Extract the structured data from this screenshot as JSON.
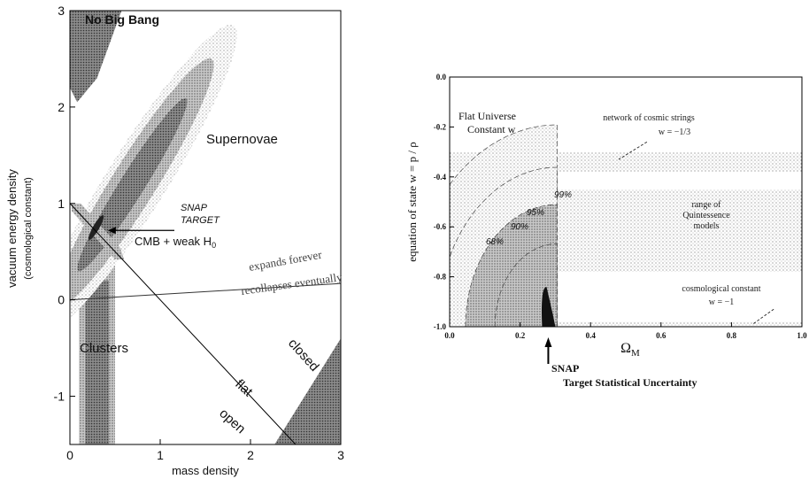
{
  "chart_data": [
    {
      "type": "area",
      "xlabel": "mass density",
      "ylabel": "vacuum energy density",
      "ylabel2": "(cosmological constant)",
      "xlim": [
        0,
        3
      ],
      "ylim": [
        -1.5,
        3
      ],
      "xticks": [
        {
          "value": 0,
          "label": "0"
        },
        {
          "value": 1,
          "label": "1"
        },
        {
          "value": 2,
          "label": "2"
        },
        {
          "value": 3,
          "label": "3"
        }
      ],
      "yticks": [
        {
          "value": -1,
          "label": "-1"
        },
        {
          "value": 0,
          "label": "0"
        },
        {
          "value": 1,
          "label": "1"
        },
        {
          "value": 2,
          "label": "2"
        },
        {
          "value": 3,
          "label": "3"
        }
      ],
      "regions": {
        "no_big_bang": "No Big Bang",
        "supernovae": "Supernovae",
        "snap_target_1": "SNAP",
        "snap_target_2": "TARGET",
        "cmb": "CMB + weak H",
        "cmb_sub": "0",
        "clusters": "Clusters",
        "expands": "expands forever",
        "recollapses": "recollapses eventually",
        "closed": "closed",
        "flat": "flat",
        "open": "open"
      },
      "supernovae_ellipse_center": [
        0.75,
        1.25
      ],
      "clusters_band_x": [
        0.1,
        0.5
      ],
      "flat_line": {
        "x": [
          0,
          2.5
        ],
        "y": [
          1,
          -1.5
        ]
      },
      "recollapse_line": {
        "x": [
          0,
          3
        ],
        "y": [
          0,
          0.17
        ]
      }
    },
    {
      "type": "area",
      "title": "Flat Universe",
      "subtitle": "Constant w",
      "xlabel_main": "Ω",
      "xlabel_sub": "M",
      "ylabel": "equation of state    w = p / ρ",
      "xlim": [
        0,
        1
      ],
      "ylim": [
        -1,
        0
      ],
      "xticks": [
        {
          "value": 0,
          "label": "0.0"
        },
        {
          "value": 0.2,
          "label": "0.2"
        },
        {
          "value": 0.4,
          "label": "0.4"
        },
        {
          "value": 0.6,
          "label": "0.6"
        },
        {
          "value": 0.8,
          "label": "0.8"
        },
        {
          "value": 1.0,
          "label": "1.0"
        }
      ],
      "yticks": [
        {
          "value": 0,
          "label": "0.0"
        },
        {
          "value": -0.2,
          "label": "-0.2"
        },
        {
          "value": -0.4,
          "label": "-0.4"
        },
        {
          "value": -0.6,
          "label": "-0.6"
        },
        {
          "value": -0.8,
          "label": "-0.8"
        },
        {
          "value": -1.0,
          "label": "-1.0"
        }
      ],
      "bands": [
        {
          "label": "network of cosmic strings",
          "sublabel": "w = −1/3",
          "w_range": [
            -0.38,
            -0.3
          ]
        },
        {
          "label": "range of",
          "label2": "Quintessence",
          "label3": "models",
          "w_range": [
            -0.78,
            -0.45
          ]
        },
        {
          "label": "cosmological constant",
          "sublabel": "w = −1",
          "w_range": [
            -1.0,
            -0.98
          ]
        }
      ],
      "contour_labels": [
        "68%",
        "90%",
        "95%",
        "99%"
      ],
      "contour_center": [
        0.28,
        -1.0
      ],
      "annotation": {
        "line1": "SNAP",
        "line2": "Target Statistical Uncertainty",
        "x": 0.28
      }
    }
  ]
}
